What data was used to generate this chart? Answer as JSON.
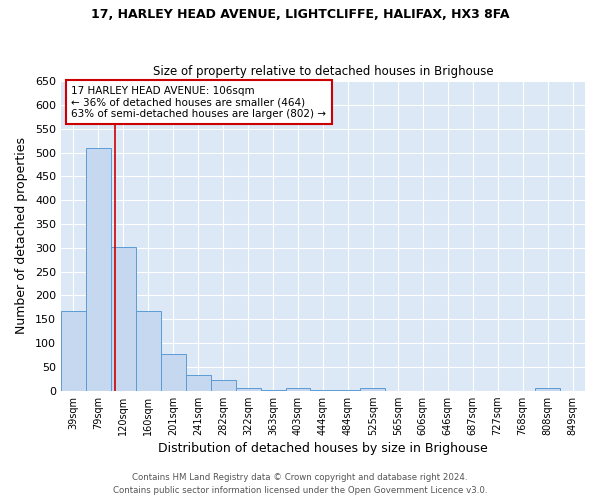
{
  "title1": "17, HARLEY HEAD AVENUE, LIGHTCLIFFE, HALIFAX, HX3 8FA",
  "title2": "Size of property relative to detached houses in Brighouse",
  "xlabel": "Distribution of detached houses by size in Brighouse",
  "ylabel": "Number of detached properties",
  "bar_labels": [
    "39sqm",
    "79sqm",
    "120sqm",
    "160sqm",
    "201sqm",
    "241sqm",
    "282sqm",
    "322sqm",
    "363sqm",
    "403sqm",
    "444sqm",
    "484sqm",
    "525sqm",
    "565sqm",
    "606sqm",
    "646sqm",
    "687sqm",
    "727sqm",
    "768sqm",
    "808sqm",
    "849sqm"
  ],
  "bar_values": [
    168,
    510,
    302,
    168,
    77,
    33,
    22,
    5,
    1,
    6,
    1,
    1,
    5,
    0,
    0,
    0,
    0,
    0,
    0,
    5,
    0
  ],
  "bar_color": "#c5d8f0",
  "bar_edge_color": "#5b9bd5",
  "fig_background_color": "#ffffff",
  "plot_background_color": "#dce8f5",
  "grid_color": "#ffffff",
  "red_line_color": "#cc0000",
  "annotation_text": "17 HARLEY HEAD AVENUE: 106sqm\n← 36% of detached houses are smaller (464)\n63% of semi-detached houses are larger (802) →",
  "annotation_box_color": "#ffffff",
  "annotation_box_edge": "#cc0000",
  "footer1": "Contains HM Land Registry data © Crown copyright and database right 2024.",
  "footer2": "Contains public sector information licensed under the Open Government Licence v3.0.",
  "ylim": [
    0,
    650
  ],
  "yticks": [
    0,
    50,
    100,
    150,
    200,
    250,
    300,
    350,
    400,
    450,
    500,
    550,
    600,
    650
  ]
}
